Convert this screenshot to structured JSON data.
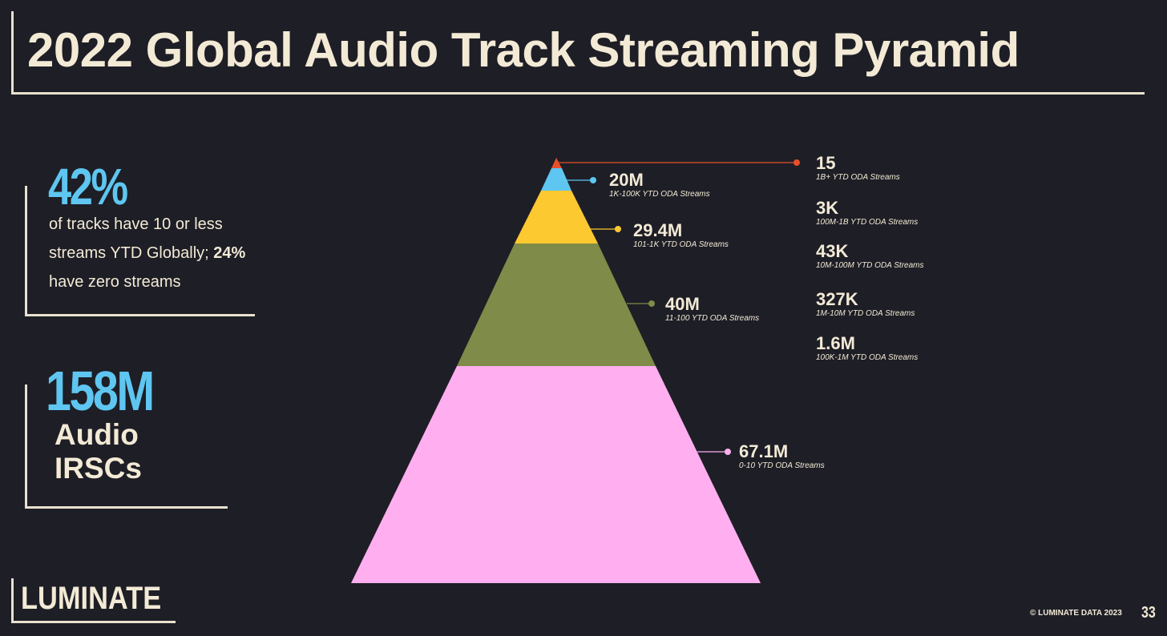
{
  "title": "2022 Global Audio Track Streaming Pyramid",
  "stats": {
    "stat1": {
      "value": "42%",
      "line1": "of tracks have 10 or less",
      "line2_prefix": "streams YTD Globally; ",
      "line2_bold": "24%",
      "line3": "have zero streams"
    },
    "stat2": {
      "value": "158M",
      "line1": "Audio",
      "line2": "IRSCs"
    }
  },
  "chart_data": {
    "type": "pyramid",
    "title": "2022 Global Audio Track Streaming Pyramid",
    "unit": "tracks",
    "tiers": [
      {
        "value": "15",
        "count": 15,
        "label": "1B+ YTD ODA Streams",
        "color": "#e8502a"
      },
      {
        "value": "3K",
        "count": 3000,
        "label": "100M-1B YTD ODA Streams",
        "color": "#e8502a"
      },
      {
        "value": "43K",
        "count": 43000,
        "label": "10M-100M YTD ODA Streams",
        "color": "#e8502a"
      },
      {
        "value": "327K",
        "count": 327000,
        "label": "1M-10M YTD ODA Streams",
        "color": "#e8502a"
      },
      {
        "value": "1.6M",
        "count": 1600000,
        "label": "100K-1M YTD ODA Streams",
        "color": "#e8502a"
      },
      {
        "value": "20M",
        "count": 20000000,
        "label": "1K-100K YTD ODA Streams",
        "color": "#5ec6f0"
      },
      {
        "value": "29.4M",
        "count": 29400000,
        "label": "101-1K YTD ODA Streams",
        "color": "#fdc930"
      },
      {
        "value": "40M",
        "count": 40000000,
        "label": "11-100 YTD ODA Streams",
        "color": "#7f8b48"
      },
      {
        "value": "67.1M",
        "count": 67100000,
        "label": "0-10 YTD ODA Streams",
        "color": "#ffafef"
      }
    ]
  },
  "footer": {
    "logo": "LUMINATE",
    "copyright": "© LUMINATE DATA 2023",
    "page": "33"
  }
}
